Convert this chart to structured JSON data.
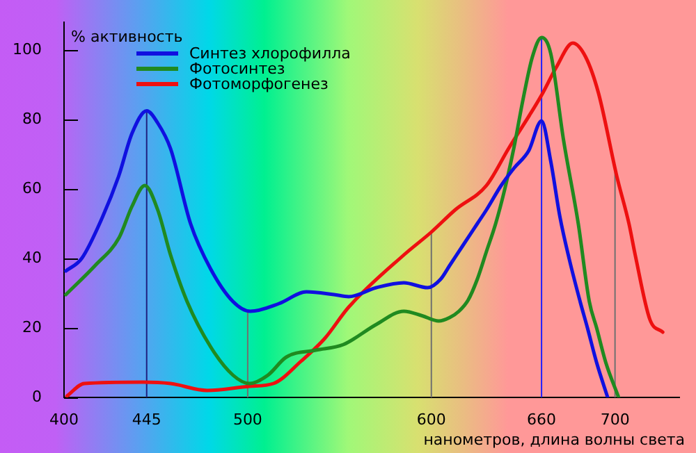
{
  "chart_data": {
    "type": "line",
    "ylabel": "% активность",
    "xlabel": "нанометров, длина волны света",
    "xlim": [
      400,
      735
    ],
    "xticks": [
      400,
      445,
      500,
      600,
      660,
      700
    ],
    "ylim": [
      0,
      108
    ],
    "yticks": [
      0,
      20,
      40,
      60,
      80,
      100
    ],
    "grid": false,
    "legend": "top left",
    "marker": "none",
    "line_style": "solid",
    "series": [
      {
        "name": "Синтез хлорофилла",
        "color": "#1010e0",
        "x": [
          401,
          409.6,
          421,
          429.7,
          437,
          445,
          451,
          458,
          468.9,
          479.8,
          492,
          501.4,
          517,
          532,
          547,
          555,
          570,
          585,
          598,
          605,
          610,
          617,
          625,
          630,
          638,
          645,
          653,
          660,
          665,
          670,
          675,
          681,
          685,
          690,
          696
        ],
        "values": [
          36.4,
          40,
          52,
          63.6,
          76,
          82.5,
          79,
          71.6,
          50,
          37,
          27.6,
          24.8,
          27,
          30.4,
          29.6,
          29,
          31.6,
          33,
          31.6,
          34,
          38,
          43.6,
          50,
          54,
          61,
          66,
          71,
          79.6,
          68,
          52,
          40,
          27.6,
          20,
          10,
          0
        ]
      },
      {
        "name": "Фотосинтез",
        "color": "#208a20",
        "x": [
          401,
          417,
          430,
          437,
          444,
          451,
          458,
          467,
          480,
          492,
          501,
          511,
          521,
          537,
          552,
          570,
          585,
          595,
          604,
          610,
          615,
          620,
          625,
          630,
          635,
          640,
          645,
          650,
          655,
          660,
          665,
          672,
          680,
          686,
          690,
          695,
          702
        ],
        "values": [
          29.6,
          38,
          46,
          55,
          61,
          54,
          41,
          27.6,
          14.4,
          6.4,
          4,
          6.4,
          11.6,
          13.6,
          15.2,
          21,
          24.8,
          23.5,
          22,
          23,
          24.8,
          28,
          34,
          42,
          50,
          60,
          72,
          86,
          98,
          103.6,
          99,
          74,
          50,
          27.6,
          20,
          10,
          0
        ]
      },
      {
        "name": "Фотоморфогенез",
        "color": "#ee1010",
        "x": [
          401.6,
          411,
          443,
          458,
          478,
          501,
          514,
          529,
          542,
          555,
          585,
          600,
          613,
          630,
          642,
          660,
          668,
          677,
          684,
          691,
          701,
          707.6,
          711,
          719,
          726
        ],
        "values": [
          0.4,
          4,
          4.4,
          4,
          2,
          3.2,
          4,
          10.4,
          17,
          26,
          41,
          47.6,
          54,
          61,
          71.6,
          87,
          95,
          102,
          98,
          87.6,
          63.6,
          50,
          41,
          22.4,
          18.8
        ]
      }
    ],
    "ref_lines": [
      {
        "axis": "x",
        "value": 445,
        "color": "#202080"
      },
      {
        "axis": "x",
        "value": 500,
        "color": "#707070"
      },
      {
        "axis": "x",
        "value": 600,
        "color": "#707070"
      },
      {
        "axis": "x",
        "value": 660,
        "color": "#2020ff"
      },
      {
        "axis": "x",
        "value": 700,
        "color": "#707070"
      }
    ]
  }
}
